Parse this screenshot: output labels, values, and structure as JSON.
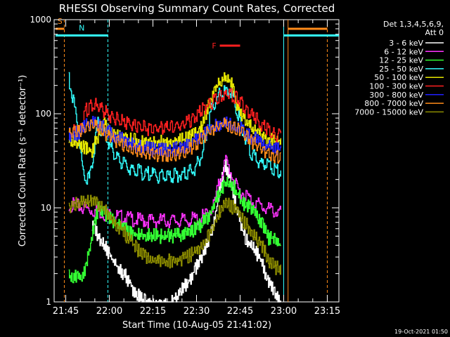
{
  "chart_data": {
    "type": "line",
    "title": "RHESSI Observing Summary Count Rates, Corrected",
    "xlabel": "Start Time (10-Aug-05 21:41:02)",
    "ylabel": "Corrected Count Rate (s⁻¹ detector⁻¹)",
    "yscale": "log",
    "ylim": [
      1,
      1000
    ],
    "xlim_minutes": [
      0,
      98
    ],
    "x_tick_minutes": [
      4,
      19,
      34,
      49,
      64,
      79,
      94
    ],
    "x_tick_labels": [
      "21:45",
      "22:00",
      "22:15",
      "22:30",
      "22:45",
      "23:00",
      "23:15"
    ],
    "y_ticks": [
      1,
      10,
      100,
      1000
    ],
    "y_tick_labels": [
      "1",
      "10",
      "100",
      "1000"
    ],
    "legend_position": "right",
    "legend_header": [
      "Det 1,3,4,5,6,9,",
      "Att 0"
    ],
    "timestamp": "19-Oct-2021 01:50",
    "grid": false,
    "annotations": [
      {
        "label": "S",
        "color": "#ff8c1a",
        "t0": 0.5,
        "t1": 3.5,
        "y": 800
      },
      {
        "label": "N",
        "color": "#33ffff",
        "t0": 0.5,
        "t1": 18.5,
        "y": 680
      },
      {
        "label": "F",
        "color": "#ff2020",
        "t0": 57,
        "t1": 64,
        "y": 530
      },
      {
        "label": "",
        "color": "#ff8c1a",
        "t0": 80.5,
        "t1": 94,
        "y": 800
      },
      {
        "label": "",
        "color": "#33ffff",
        "t0": 79,
        "t1": 98,
        "y": 680
      }
    ],
    "vlines": [
      {
        "t": 3.5,
        "color": "#ff8c1a",
        "dash": true
      },
      {
        "t": 18.5,
        "color": "#33ffff",
        "dash": true
      },
      {
        "t": 79,
        "color": "#33ffff",
        "dash": false
      },
      {
        "t": 80.5,
        "color": "#ff8c1a",
        "dash": false
      },
      {
        "t": 94,
        "color": "#ff8c1a",
        "dash": true
      }
    ],
    "series": [
      {
        "name": "3 - 6 keV",
        "color": "#ffffff",
        "x": [
          13,
          16,
          19,
          22,
          25,
          27,
          30,
          33,
          36,
          39,
          42,
          44,
          47,
          50,
          52,
          55,
          57,
          59,
          61,
          63,
          65,
          67,
          70,
          72,
          74,
          76,
          78
        ],
        "y": [
          7,
          5,
          3.5,
          2.5,
          2,
          1.5,
          1.2,
          1,
          1,
          1,
          1.2,
          1.5,
          2,
          3,
          4,
          8,
          18,
          30,
          20,
          10,
          6,
          4.5,
          3.5,
          2.5,
          1.8,
          1.3,
          1
        ]
      },
      {
        "name": "6 - 12 keV",
        "color": "#ff33ff",
        "x": [
          5,
          10,
          15,
          20,
          25,
          30,
          35,
          40,
          45,
          50,
          53,
          55,
          57,
          59,
          61,
          63,
          66,
          68,
          70,
          72,
          74,
          76,
          78
        ],
        "y": [
          12,
          11,
          10,
          9,
          8.5,
          8,
          8,
          8,
          8,
          8.5,
          9.5,
          12,
          22,
          35,
          25,
          17,
          15,
          13,
          12,
          11,
          10.5,
          10,
          9.5
        ]
      },
      {
        "name": "12 - 25 keV",
        "color": "#33ff33",
        "x": [
          5,
          10,
          15,
          20,
          23,
          26,
          30,
          35,
          40,
          45,
          50,
          53,
          56,
          59,
          62,
          65,
          67,
          70,
          72,
          74,
          76,
          78
        ],
        "y": [
          2,
          2,
          11,
          8,
          7,
          6,
          5.5,
          5.5,
          5.5,
          5.8,
          7,
          9,
          14,
          20,
          18,
          12,
          11,
          9,
          7,
          5,
          5.5,
          4
        ]
      },
      {
        "name": "25 - 50 keV",
        "color": "#33ffff",
        "x": [
          5,
          8,
          10,
          12,
          15,
          18,
          21,
          25,
          30,
          35,
          40,
          45,
          48,
          51,
          54,
          57,
          60,
          62,
          64,
          66,
          68,
          70,
          72,
          74,
          76,
          78
        ],
        "y": [
          250,
          90,
          25,
          22,
          85,
          60,
          38,
          30,
          26,
          24,
          24,
          25,
          28,
          40,
          120,
          180,
          200,
          150,
          90,
          55,
          40,
          35,
          32,
          30,
          28,
          25
        ]
      },
      {
        "name": "50 - 100 keV",
        "color": "#e6e600",
        "x": [
          5,
          10,
          13,
          17,
          20,
          25,
          30,
          35,
          40,
          45,
          50,
          53,
          55,
          57,
          59,
          61,
          63,
          66,
          69,
          72,
          75,
          78
        ],
        "y": [
          60,
          50,
          45,
          90,
          65,
          58,
          55,
          54,
          55,
          58,
          70,
          130,
          200,
          240,
          260,
          230,
          130,
          90,
          72,
          62,
          56,
          55
        ]
      },
      {
        "name": "100 - 300 keV",
        "color": "#ff2020",
        "x": [
          5,
          9,
          11,
          13,
          16,
          20,
          25,
          30,
          35,
          40,
          45,
          48,
          52,
          56,
          60,
          64,
          68,
          72,
          75,
          78
        ],
        "y": [
          70,
          75,
          120,
          140,
          125,
          100,
          85,
          78,
          76,
          78,
          85,
          100,
          130,
          160,
          175,
          150,
          105,
          80,
          68,
          62
        ]
      },
      {
        "name": "300 - 800 keV",
        "color": "#2020ff",
        "x": [
          5,
          9,
          11,
          13,
          16,
          20,
          25,
          30,
          35,
          40,
          45,
          48,
          52,
          56,
          60,
          64,
          68,
          72,
          75,
          78
        ],
        "y": [
          65,
          70,
          85,
          90,
          80,
          65,
          55,
          48,
          45,
          45,
          48,
          55,
          70,
          85,
          85,
          75,
          62,
          52,
          48,
          46
        ]
      },
      {
        "name": "800 - 7000 keV",
        "color": "#ff8c1a",
        "x": [
          5,
          9,
          11,
          13,
          16,
          20,
          25,
          30,
          35,
          40,
          45,
          48,
          52,
          56,
          60,
          64,
          68,
          72,
          75,
          78
        ],
        "y": [
          68,
          72,
          78,
          82,
          75,
          60,
          48,
          42,
          40,
          40,
          43,
          50,
          65,
          80,
          85,
          72,
          55,
          45,
          40,
          38
        ]
      },
      {
        "name": "7000 - 15000 keV",
        "color": "#8c8c00",
        "x": [
          5,
          8,
          11,
          14,
          17,
          20,
          23,
          26,
          30,
          35,
          40,
          45,
          50,
          53,
          56,
          59,
          62,
          65,
          68,
          71,
          74,
          76,
          78
        ],
        "y": [
          11,
          12,
          13,
          12.5,
          11,
          8,
          6.5,
          5,
          3.5,
          3,
          3,
          3.2,
          4,
          5.5,
          9,
          12,
          11,
          8,
          6,
          4.5,
          3,
          2.5,
          2.5
        ]
      }
    ]
  }
}
